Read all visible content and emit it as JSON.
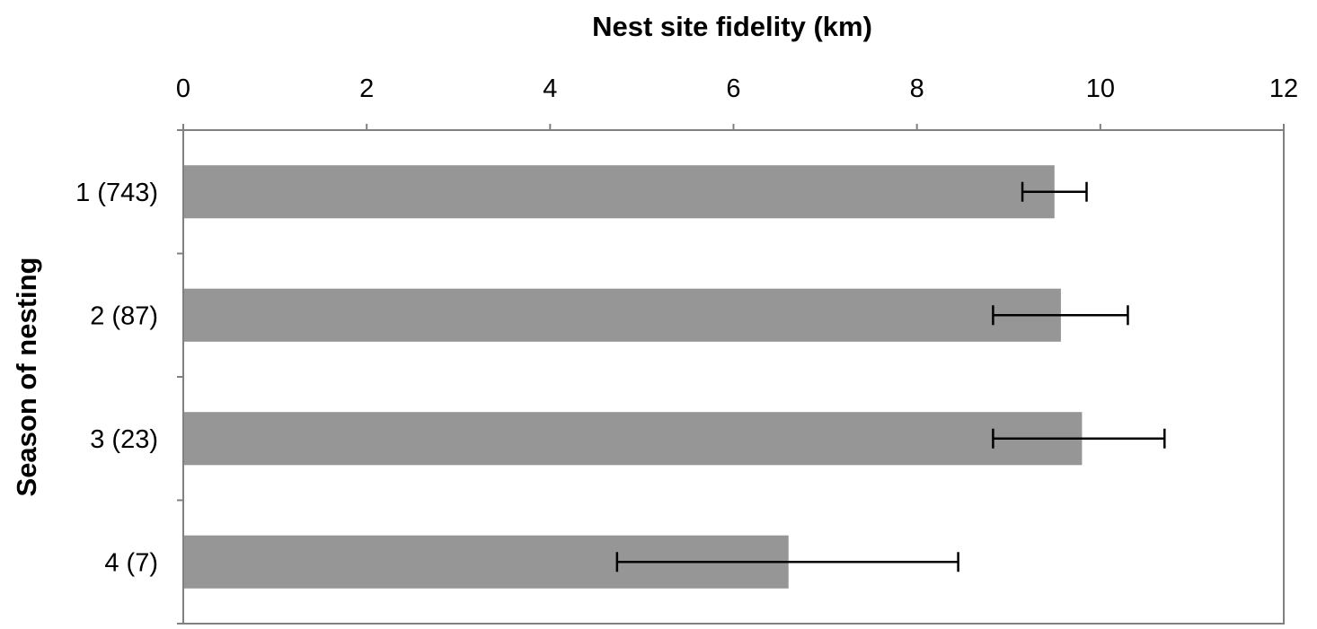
{
  "chart_data": {
    "type": "bar",
    "orientation": "horizontal",
    "title": "Nest site fidelity (km)",
    "xlabel": "Nest site fidelity (km)",
    "ylabel": "Season of nesting",
    "categories": [
      "1 (743)",
      "2 (87)",
      "3 (23)",
      "4 (7)"
    ],
    "values": [
      9.5,
      9.57,
      9.8,
      6.6
    ],
    "error_low": [
      9.15,
      8.83,
      8.83,
      4.73
    ],
    "error_high": [
      9.85,
      10.3,
      10.7,
      8.45
    ],
    "xlim": [
      0,
      12
    ],
    "xticks": [
      "0",
      "2",
      "4",
      "6",
      "8",
      "10",
      "12"
    ],
    "x_axis_position": "top",
    "grid": false,
    "bar_color": "#969696",
    "error_bar_color": "#000000"
  }
}
